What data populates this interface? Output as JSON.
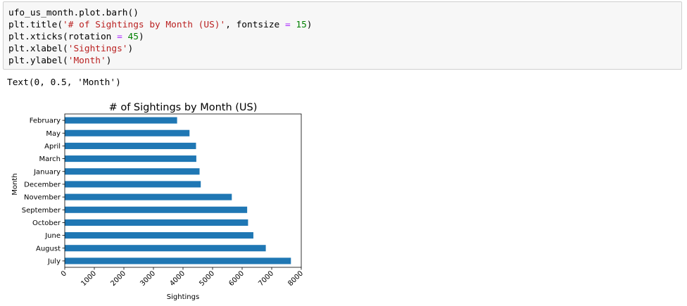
{
  "code_cell": {
    "lines": [
      [
        {
          "t": "ufo_us_month.plot.barh()",
          "c": ""
        }
      ],
      [
        {
          "t": "plt.title(",
          "c": ""
        },
        {
          "t": "'# of Sightings by Month (US)'",
          "c": "str"
        },
        {
          "t": ", fontsize ",
          "c": ""
        },
        {
          "t": "=",
          "c": "op"
        },
        {
          "t": " ",
          "c": ""
        },
        {
          "t": "15",
          "c": "num"
        },
        {
          "t": ")",
          "c": ""
        }
      ],
      [
        {
          "t": "plt.xticks(rotation ",
          "c": ""
        },
        {
          "t": "=",
          "c": "op"
        },
        {
          "t": " ",
          "c": ""
        },
        {
          "t": "45",
          "c": "num"
        },
        {
          "t": ")",
          "c": ""
        }
      ],
      [
        {
          "t": "plt.xlabel(",
          "c": ""
        },
        {
          "t": "'Sightings'",
          "c": "str"
        },
        {
          "t": ")",
          "c": ""
        }
      ],
      [
        {
          "t": "plt.ylabel(",
          "c": ""
        },
        {
          "t": "'Month'",
          "c": "str"
        },
        {
          "t": ")",
          "c": ""
        }
      ]
    ]
  },
  "output": {
    "text": "Text(0, 0.5, 'Month')"
  },
  "chart_data": {
    "type": "bar",
    "orientation": "horizontal",
    "title": "# of Sightings by Month (US)",
    "xlabel": "Sightings",
    "ylabel": "Month",
    "categories": [
      "July",
      "August",
      "June",
      "October",
      "September",
      "November",
      "December",
      "January",
      "March",
      "April",
      "May",
      "February"
    ],
    "values": [
      7650,
      6800,
      6380,
      6200,
      6170,
      5650,
      4600,
      4560,
      4450,
      4440,
      4220,
      3800
    ],
    "xlim": [
      0,
      8000
    ],
    "xticks": [
      0,
      1000,
      2000,
      3000,
      4000,
      5000,
      6000,
      7000,
      8000
    ],
    "xtick_rotation": 45,
    "bar_color": "#1f77b4",
    "grid": false,
    "legend": "none"
  }
}
